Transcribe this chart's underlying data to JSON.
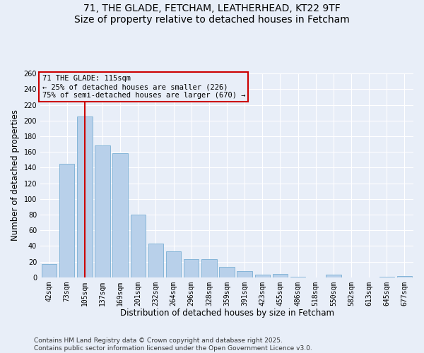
{
  "title_line1": "71, THE GLADE, FETCHAM, LEATHERHEAD, KT22 9TF",
  "title_line2": "Size of property relative to detached houses in Fetcham",
  "xlabel": "Distribution of detached houses by size in Fetcham",
  "ylabel": "Number of detached properties",
  "categories": [
    "42sqm",
    "73sqm",
    "105sqm",
    "137sqm",
    "169sqm",
    "201sqm",
    "232sqm",
    "264sqm",
    "296sqm",
    "328sqm",
    "359sqm",
    "391sqm",
    "423sqm",
    "455sqm",
    "486sqm",
    "518sqm",
    "550sqm",
    "582sqm",
    "613sqm",
    "645sqm",
    "677sqm"
  ],
  "values": [
    17,
    145,
    205,
    168,
    158,
    80,
    43,
    33,
    23,
    23,
    13,
    8,
    3,
    4,
    1,
    0,
    3,
    0,
    0,
    1,
    2
  ],
  "bar_color": "#b8d0ea",
  "bar_edge_color": "#7aafd4",
  "vline_x": 2,
  "vline_color": "#cc0000",
  "annotation_title": "71 THE GLADE: 115sqm",
  "annotation_line1": "← 25% of detached houses are smaller (226)",
  "annotation_line2": "75% of semi-detached houses are larger (670) →",
  "ylim": [
    0,
    260
  ],
  "yticks": [
    0,
    20,
    40,
    60,
    80,
    100,
    120,
    140,
    160,
    180,
    200,
    220,
    240,
    260
  ],
  "footer_line1": "Contains HM Land Registry data © Crown copyright and database right 2025.",
  "footer_line2": "Contains public sector information licensed under the Open Government Licence v3.0.",
  "bg_color": "#e8eef8",
  "grid_color": "#ffffff",
  "title_fontsize": 10,
  "axis_label_fontsize": 8.5,
  "tick_fontsize": 7,
  "annotation_fontsize": 7.5,
  "footer_fontsize": 6.5
}
